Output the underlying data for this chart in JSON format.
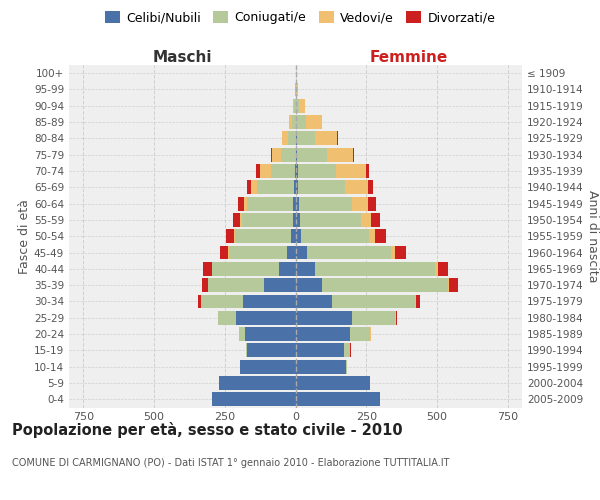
{
  "age_groups": [
    "0-4",
    "5-9",
    "10-14",
    "15-19",
    "20-24",
    "25-29",
    "30-34",
    "35-39",
    "40-44",
    "45-49",
    "50-54",
    "55-59",
    "60-64",
    "65-69",
    "70-74",
    "75-79",
    "80-84",
    "85-89",
    "90-94",
    "95-99",
    "100+"
  ],
  "birth_years": [
    "2005-2009",
    "2000-2004",
    "1995-1999",
    "1990-1994",
    "1985-1989",
    "1980-1984",
    "1975-1979",
    "1970-1974",
    "1965-1969",
    "1960-1964",
    "1955-1959",
    "1950-1954",
    "1945-1949",
    "1940-1944",
    "1935-1939",
    "1930-1934",
    "1925-1929",
    "1920-1924",
    "1915-1919",
    "1910-1914",
    "≤ 1909"
  ],
  "male_celibe": [
    295,
    270,
    195,
    170,
    180,
    210,
    185,
    110,
    60,
    30,
    15,
    10,
    8,
    5,
    3,
    0,
    0,
    0,
    0,
    0,
    0
  ],
  "male_coniugato": [
    0,
    0,
    2,
    5,
    20,
    62,
    150,
    200,
    235,
    205,
    200,
    180,
    165,
    130,
    85,
    50,
    25,
    12,
    4,
    1,
    0
  ],
  "male_vedovo": [
    0,
    0,
    0,
    0,
    0,
    0,
    0,
    0,
    1,
    2,
    3,
    5,
    9,
    22,
    38,
    32,
    22,
    12,
    4,
    1,
    0
  ],
  "male_divorziato": [
    0,
    0,
    0,
    0,
    1,
    2,
    9,
    22,
    32,
    30,
    28,
    25,
    20,
    14,
    12,
    5,
    2,
    0,
    0,
    0,
    0
  ],
  "female_nubile": [
    298,
    262,
    178,
    172,
    192,
    198,
    128,
    92,
    68,
    42,
    20,
    15,
    12,
    10,
    8,
    5,
    5,
    3,
    2,
    0,
    0
  ],
  "female_coniugata": [
    0,
    2,
    5,
    22,
    72,
    155,
    295,
    445,
    425,
    295,
    240,
    215,
    188,
    165,
    135,
    105,
    65,
    35,
    12,
    2,
    0
  ],
  "female_vedova": [
    0,
    0,
    0,
    0,
    1,
    2,
    3,
    5,
    9,
    16,
    22,
    37,
    57,
    82,
    105,
    92,
    78,
    55,
    18,
    6,
    0
  ],
  "female_divorziata": [
    0,
    0,
    0,
    1,
    2,
    5,
    13,
    32,
    37,
    37,
    37,
    32,
    27,
    16,
    12,
    5,
    3,
    2,
    0,
    0,
    0
  ],
  "color_celibe": "#4a72a8",
  "color_coniugato": "#b5c99a",
  "color_vedovo": "#f0c070",
  "color_divorziato": "#cc2020",
  "xlim": 800,
  "bg_color": "#efefef",
  "grid_color": "#d0d0d0",
  "title": "Popolazione per età, sesso e stato civile - 2010",
  "subtitle": "COMUNE DI CARMIGNANO (PO) - Dati ISTAT 1° gennaio 2010 - Elaborazione TUTTITALIA.IT",
  "label_maschi": "Maschi",
  "label_femmine": "Femmine",
  "label_fasce": "Fasce di età",
  "label_anni": "Anni di nascita",
  "legend_labels": [
    "Celibi/Nubili",
    "Coniugati/e",
    "Vedovi/e",
    "Divorzati/e"
  ]
}
